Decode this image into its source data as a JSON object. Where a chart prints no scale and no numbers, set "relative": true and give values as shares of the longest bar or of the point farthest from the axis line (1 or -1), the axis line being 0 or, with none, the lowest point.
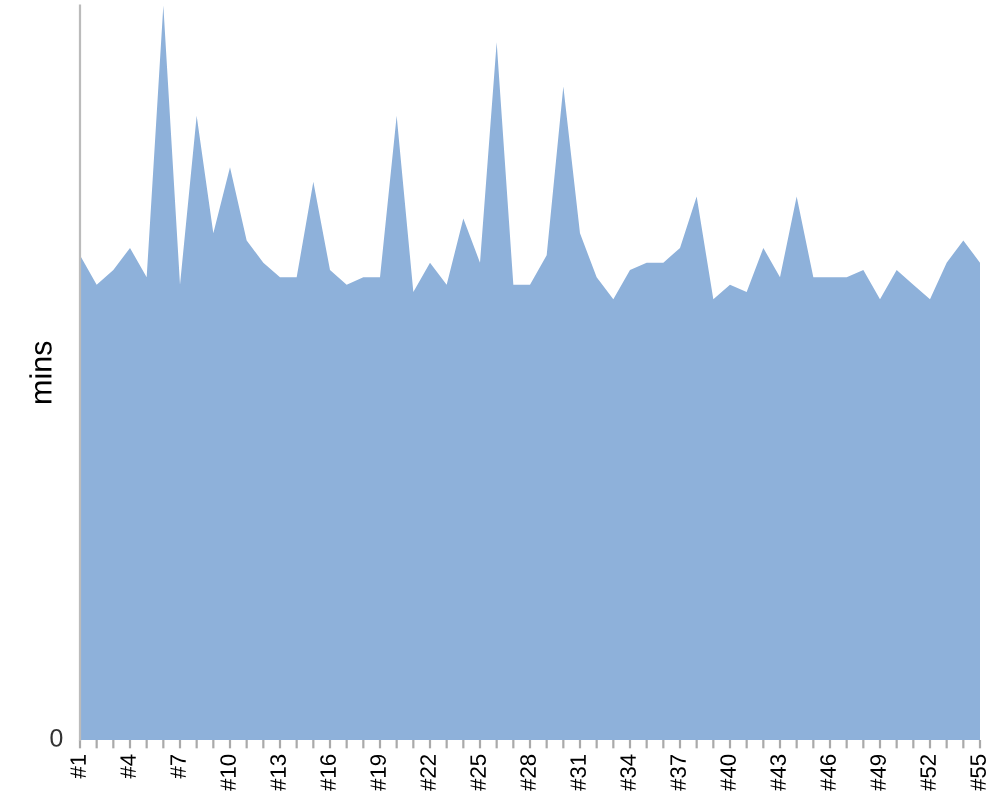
{
  "chart_data": {
    "type": "area",
    "ylabel": "mins",
    "relative": true,
    "annotations": [
      "0"
    ],
    "color": "#8eb1da",
    "legend": false,
    "categories": [
      "#1",
      null,
      null,
      "#4",
      null,
      null,
      "#7",
      null,
      null,
      "#10",
      null,
      null,
      "#13",
      null,
      null,
      "#16",
      null,
      null,
      "#19",
      null,
      null,
      "#22",
      null,
      null,
      "#25",
      null,
      null,
      "#28",
      null,
      null,
      "#31",
      null,
      null,
      "#34",
      null,
      null,
      "#37",
      null,
      null,
      "#40",
      null,
      null,
      "#43",
      null,
      null,
      "#46",
      null,
      null,
      "#49",
      null,
      null,
      "#52",
      null,
      null,
      "#55"
    ],
    "values": [
      0.66,
      0.62,
      0.64,
      0.67,
      0.63,
      1,
      0.62,
      0.85,
      0.69,
      0.78,
      0.68,
      0.65,
      0.63,
      0.63,
      0.76,
      0.64,
      0.62,
      0.63,
      0.63,
      0.85,
      0.61,
      0.65,
      0.62,
      0.71,
      0.65,
      0.95,
      0.62,
      0.62,
      0.66,
      0.89,
      0.69,
      0.63,
      0.6,
      0.64,
      0.65,
      0.65,
      0.67,
      0.74,
      0.6,
      0.62,
      0.61,
      0.67,
      0.63,
      0.74,
      0.63,
      0.63,
      0.63,
      0.64,
      0.6,
      0.64,
      0.62,
      0.6,
      0.65,
      0.68,
      0.65
    ]
  }
}
